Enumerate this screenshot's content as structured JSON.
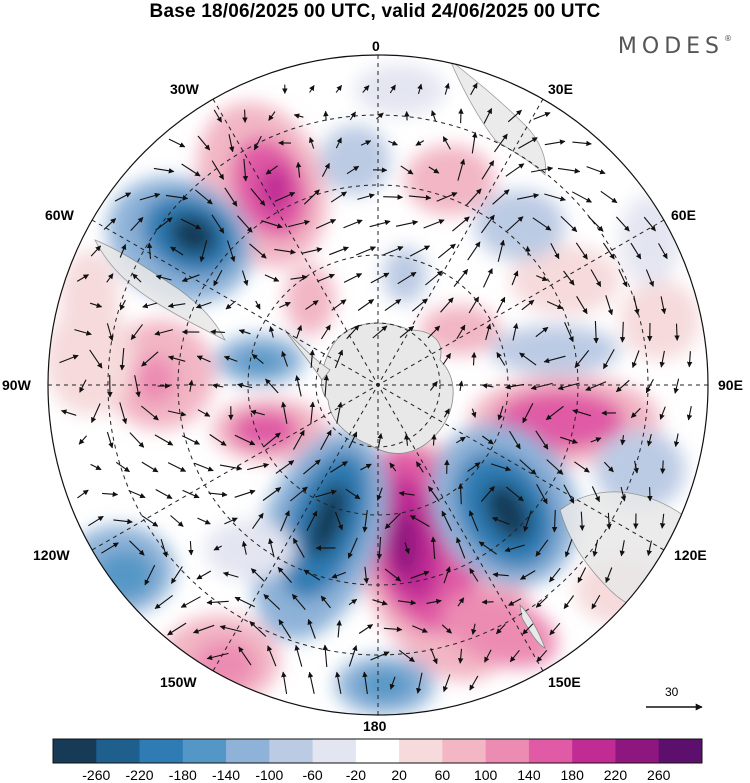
{
  "header": {
    "title": "Base 18/06/2025 00 UTC, valid 24/06/2025 00 UTC",
    "brand": "MODES"
  },
  "map": {
    "projection": "south-polar-stereographic",
    "lon_labels": {
      "top": "0",
      "bottom": "180",
      "left": "90W",
      "right": "90E",
      "upper_left": "30W",
      "upper_right": "30E",
      "mid_left": "60W",
      "mid_right": "60E",
      "lower_left": "120W",
      "lower_right": "120E",
      "bottom_left": "150W",
      "bottom_right": "150E"
    },
    "vector_reference": "30"
  },
  "colorbar": {
    "ticks": [
      "-260",
      "-220",
      "-180",
      "-140",
      "-100",
      "-60",
      "-20",
      "20",
      "60",
      "100",
      "140",
      "180",
      "220",
      "260"
    ],
    "colors": [
      "#173a57",
      "#1f5f8e",
      "#2f7bb3",
      "#5497c6",
      "#8eb2d8",
      "#bccbe4",
      "#e3e5f1",
      "#ffffff",
      "#f6dadc",
      "#f2b6c4",
      "#ec8cb2",
      "#e05aa5",
      "#c02b94",
      "#8e177f",
      "#5d0f6d"
    ]
  }
}
